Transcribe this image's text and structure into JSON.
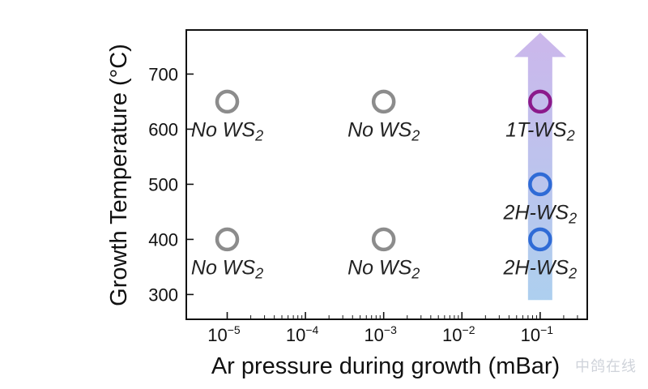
{
  "chart_data": {
    "type": "scatter",
    "xlabel": "Ar pressure during growth (mBar)",
    "ylabel": "Growth Temperature (°C)",
    "x_scale": "log",
    "xlim": [
      3e-06,
      0.4
    ],
    "ylim": [
      255,
      780
    ],
    "x_ticks": [
      1e-05,
      0.0001,
      0.001,
      0.01,
      0.1
    ],
    "x_tick_labels": [
      {
        "base": "10",
        "exp": "−5"
      },
      {
        "base": "10",
        "exp": "−4"
      },
      {
        "base": "10",
        "exp": "−3"
      },
      {
        "base": "10",
        "exp": "−2"
      },
      {
        "base": "10",
        "exp": "−1"
      }
    ],
    "y_ticks": [
      300,
      400,
      500,
      600,
      700
    ],
    "y_tick_labels": [
      "300",
      "400",
      "500",
      "600",
      "700"
    ],
    "points": [
      {
        "x": 1e-05,
        "y": 650,
        "label_main": "No WS",
        "label_sub": "2",
        "color": "#8c8c8c"
      },
      {
        "x": 0.001,
        "y": 650,
        "label_main": "No WS",
        "label_sub": "2",
        "color": "#8c8c8c"
      },
      {
        "x": 0.1,
        "y": 650,
        "label_main": "1T-WS",
        "label_sub": "2",
        "color": "#8b1a8b"
      },
      {
        "x": 0.1,
        "y": 500,
        "label_main": "2H-WS",
        "label_sub": "2",
        "color": "#2f6bd6"
      },
      {
        "x": 1e-05,
        "y": 400,
        "label_main": "No WS",
        "label_sub": "2",
        "color": "#8c8c8c"
      },
      {
        "x": 0.001,
        "y": 400,
        "label_main": "No WS",
        "label_sub": "2",
        "color": "#8c8c8c"
      },
      {
        "x": 0.1,
        "y": 400,
        "label_main": "2H-WS",
        "label_sub": "2",
        "color": "#2f6bd6"
      }
    ],
    "arrow": {
      "x": 0.1,
      "y_from": 290,
      "y_to": 775,
      "color_bottom": "#a9cdee",
      "color_top": "#c9b3ea"
    },
    "grid": false
  },
  "watermark": "中鸽在线"
}
